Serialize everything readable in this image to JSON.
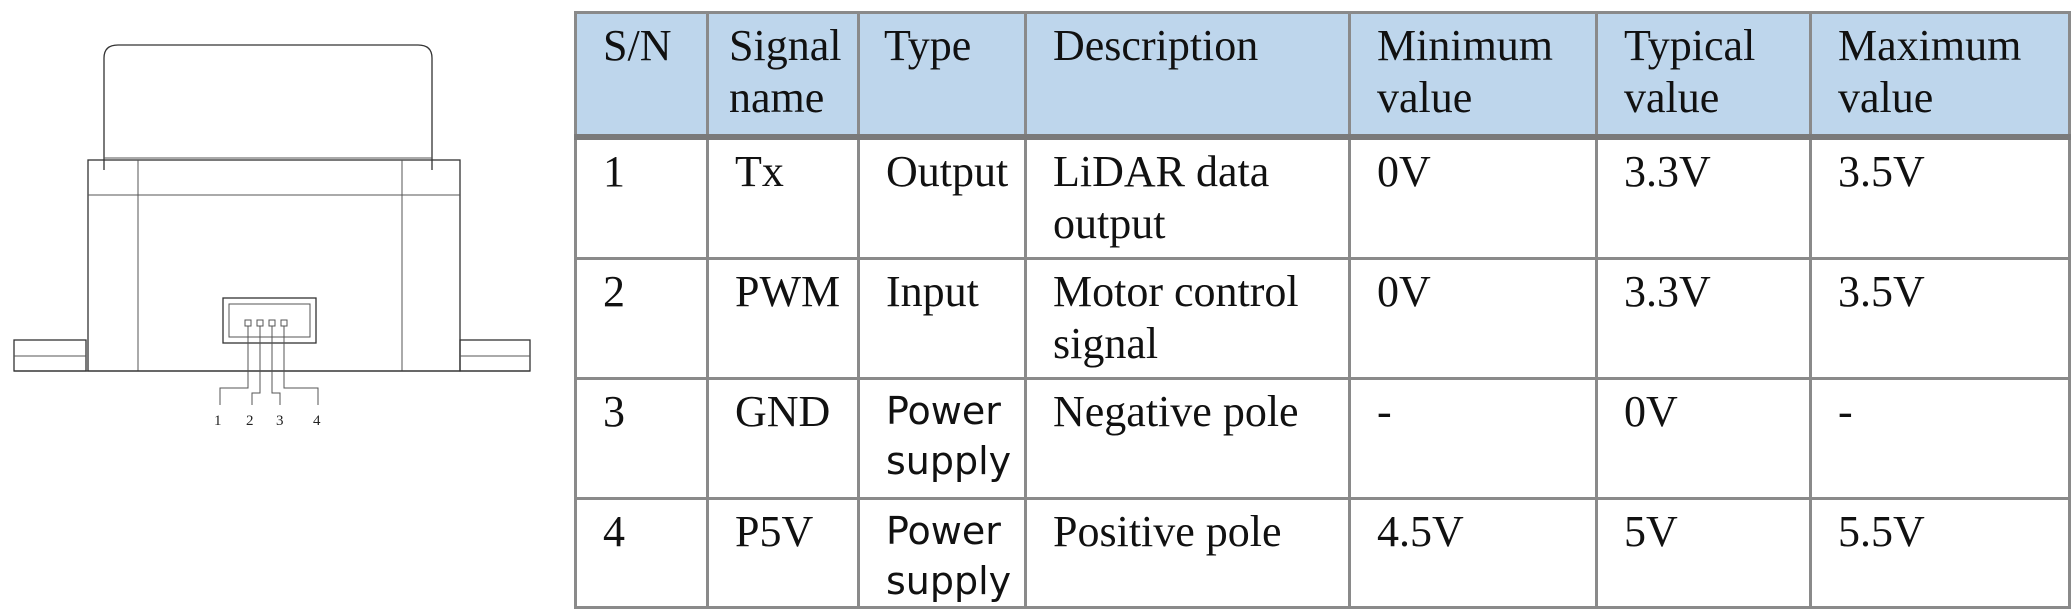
{
  "figure": {
    "pin_labels": [
      "1",
      "2",
      "3",
      "4"
    ]
  },
  "table": {
    "headers": [
      {
        "line1": "S/N",
        "line2": ""
      },
      {
        "line1": "Signal",
        "line2": "name"
      },
      {
        "line1": "Type",
        "line2": ""
      },
      {
        "line1": "Description",
        "line2": ""
      },
      {
        "line1": "Minimum",
        "line2": "value"
      },
      {
        "line1": "Typical",
        "line2": "value"
      },
      {
        "line1": "Maximum",
        "line2": "value"
      }
    ],
    "rows": [
      {
        "sn": "1",
        "signal": "Tx",
        "type": "Output",
        "description": "LiDAR data output",
        "min": "0V",
        "typical": "3.3V",
        "max": "3.5V"
      },
      {
        "sn": "2",
        "signal": "PWM",
        "type": "Input",
        "description": "Motor control signal",
        "min": "0V",
        "typical": "3.3V",
        "max": "3.5V"
      },
      {
        "sn": "3",
        "signal": "GND",
        "type": "Power supply",
        "description": "Negative pole",
        "min": "-",
        "typical": "0V",
        "max": "-"
      },
      {
        "sn": "4",
        "signal": "P5V",
        "type": "Power supply",
        "description": "Positive pole",
        "min": "4.5V",
        "typical": "5V",
        "max": "5.5V"
      }
    ]
  }
}
